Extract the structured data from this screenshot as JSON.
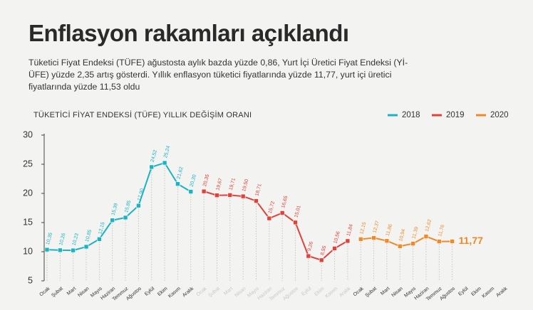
{
  "chart_data": {
    "type": "line",
    "title": "Enflasyon rakamları açıklandı",
    "subtitle": "Tüketici Fiyat Endeksi (TÜFE) ağustosta aylık bazda yüzde 0,86, Yurt İçi Üretici Fiyat Endeksi (Yİ-ÜFE) yüzde 2,35 artış gösterdi. Yıllık enflasyon tüketici fiyatlarında yüzde 11,77, yurt içi üretici fiyatlarında yüzde 11,53 oldu",
    "chart_title": "TÜKETİCİ FİYAT ENDEKSİ (TÜFE) YILLIK DEĞİŞİM ORANI",
    "categories": [
      "Ocak",
      "Şubat",
      "Mart",
      "Nisan",
      "Mayıs",
      "Haziran",
      "Temmuz",
      "Ağustos",
      "Eylül",
      "Ekim",
      "Kasım",
      "Aralık",
      "Ocak",
      "Şubat",
      "Mart",
      "Nisan",
      "Mayıs",
      "Haziran",
      "Temmuz",
      "Ağustos",
      "Eylül",
      "Ekim",
      "Kasım",
      "Aralık",
      "Ocak",
      "Şubat",
      "Mart",
      "Nisan",
      "Mayıs",
      "Haziran",
      "Temmuz",
      "Ağustos",
      "Eylül",
      "Ekim",
      "Kasım",
      "Aralık"
    ],
    "series": [
      {
        "name": "2018",
        "color": "#1ab3c3",
        "values": [
          10.35,
          10.26,
          10.23,
          10.85,
          12.15,
          15.39,
          15.85,
          17.9,
          24.52,
          25.24,
          21.62,
          20.3,
          null,
          null,
          null,
          null,
          null,
          null,
          null,
          null,
          null,
          null,
          null,
          null,
          null,
          null,
          null,
          null,
          null,
          null,
          null,
          null,
          null,
          null,
          null,
          null
        ],
        "value_labels": [
          "10,35",
          "10,26",
          "10,23",
          "10,85",
          "12,15",
          "15,39",
          "15,85",
          "17,90",
          "24,52",
          "25,24",
          "21,62",
          "20,30",
          null,
          null,
          null,
          null,
          null,
          null,
          null,
          null,
          null,
          null,
          null,
          null,
          null,
          null,
          null,
          null,
          null,
          null,
          null,
          null,
          null,
          null,
          null,
          null
        ]
      },
      {
        "name": "2019",
        "color": "#e0413a",
        "values": [
          null,
          null,
          null,
          null,
          null,
          null,
          null,
          null,
          null,
          null,
          null,
          null,
          20.35,
          19.67,
          19.71,
          19.5,
          18.71,
          15.72,
          16.65,
          15.01,
          9.26,
          8.55,
          10.56,
          11.84,
          null,
          null,
          null,
          null,
          null,
          null,
          null,
          null,
          null,
          null,
          null,
          null
        ],
        "value_labels": [
          null,
          null,
          null,
          null,
          null,
          null,
          null,
          null,
          null,
          null,
          null,
          null,
          "20,35",
          "19,67",
          "19,71",
          "19,50",
          "18,71",
          "15,72",
          "16,65",
          "15,01",
          "9,26",
          "8,55",
          "10,56",
          "11,84",
          null,
          null,
          null,
          null,
          null,
          null,
          null,
          null,
          null,
          null,
          null,
          null
        ]
      },
      {
        "name": "2020",
        "color": "#f0892a",
        "values": [
          null,
          null,
          null,
          null,
          null,
          null,
          null,
          null,
          null,
          null,
          null,
          null,
          null,
          null,
          null,
          null,
          null,
          null,
          null,
          null,
          null,
          null,
          null,
          null,
          12.15,
          12.37,
          11.86,
          10.94,
          11.39,
          12.62,
          11.76,
          11.77,
          null,
          null,
          null,
          null
        ],
        "value_labels": [
          null,
          null,
          null,
          null,
          null,
          null,
          null,
          null,
          null,
          null,
          null,
          null,
          null,
          null,
          null,
          null,
          null,
          null,
          null,
          null,
          null,
          null,
          null,
          null,
          "12,15",
          "12,37",
          "11,86",
          "10,94",
          "11,39",
          "12,62",
          "11,76",
          "11,77",
          null,
          null,
          null,
          null
        ]
      }
    ],
    "ylim": [
      5,
      30
    ],
    "yticks": [
      5,
      10,
      15,
      20,
      25,
      30
    ]
  }
}
